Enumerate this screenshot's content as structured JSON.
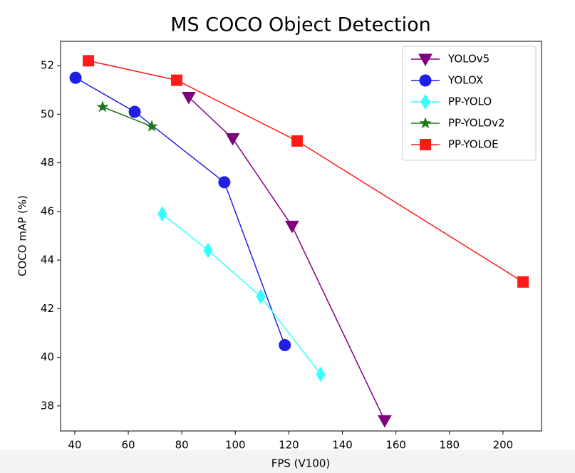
{
  "chart_data": {
    "type": "line",
    "title": "MS COCO Object Detection",
    "x_label": "FPS (V100)",
    "y_label": "COCO mAP (%)",
    "xlim": [
      34.7,
      214.4
    ],
    "xticks": [
      40,
      60,
      80,
      100,
      120,
      140,
      160,
      180,
      200
    ],
    "ylim": [
      36.97,
      53.0
    ],
    "yticks": [
      38,
      40,
      42,
      44,
      46,
      48,
      50,
      52
    ],
    "grid": false,
    "legend": "upper right",
    "series": [
      {
        "name": "YOLOv5",
        "color": "#800080",
        "marker": "triangle-down",
        "x": [
          82.6,
          99,
          121.2,
          155.8
        ],
        "values": [
          50.7,
          49.0,
          45.4,
          37.4
        ]
      },
      {
        "name": "YOLOX",
        "color": "#1f1fe6",
        "marker": "circle",
        "x": [
          40.3,
          62.4,
          95.9,
          118.5
        ],
        "values": [
          51.5,
          50.1,
          47.2,
          40.5
        ]
      },
      {
        "name": "PP-YOLO",
        "color": "#33ffff",
        "marker": "diamond",
        "x": [
          72.7,
          89.8,
          109.5,
          131.9
        ],
        "values": [
          45.9,
          44.4,
          42.5,
          39.3
        ]
      },
      {
        "name": "PP-YOLOv2",
        "color": "#1a7a1a",
        "marker": "star",
        "x": [
          50.4,
          68.8
        ],
        "values": [
          50.3,
          49.5
        ]
      },
      {
        "name": "PP-YOLOE",
        "color": "#ff1a1a",
        "marker": "square",
        "x": [
          45.1,
          78.1,
          123.1,
          207.5
        ],
        "values": [
          52.2,
          51.4,
          48.9,
          43.1
        ]
      }
    ]
  }
}
